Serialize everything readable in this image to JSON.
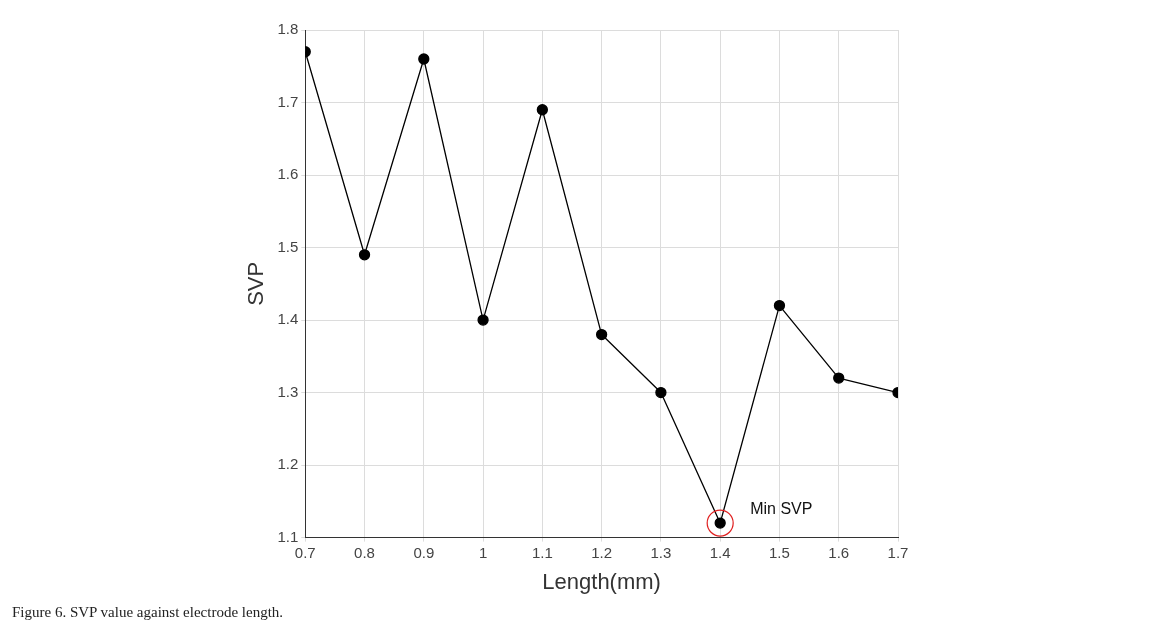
{
  "chart_data": {
    "type": "line",
    "xlabel": "Length(mm)",
    "ylabel": "SVP",
    "x": [
      0.7,
      0.8,
      0.9,
      1.0,
      1.1,
      1.2,
      1.3,
      1.4,
      1.5,
      1.6,
      1.7
    ],
    "values": [
      1.77,
      1.49,
      1.76,
      1.4,
      1.69,
      1.38,
      1.3,
      1.12,
      1.42,
      1.32,
      1.3
    ],
    "color": "#000000",
    "marker": "circle",
    "line_style": "solid",
    "grid": true,
    "legend": false,
    "xlim": [
      0.7,
      1.7
    ],
    "xticks": [
      0.7,
      0.8,
      0.9,
      1,
      1.1,
      1.2,
      1.3,
      1.4,
      1.5,
      1.6,
      1.7
    ],
    "ylim": [
      1.1,
      1.8
    ],
    "yticks": [
      1.1,
      1.2,
      1.3,
      1.4,
      1.5,
      1.6,
      1.7,
      1.8
    ],
    "annotations": [
      {
        "text": "Min SVP",
        "x": 1.4,
        "y": 1.12
      },
      "Figure 6. SVP value against electrode length."
    ]
  }
}
